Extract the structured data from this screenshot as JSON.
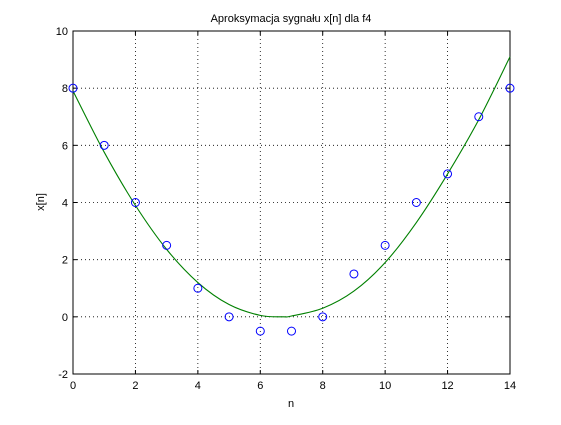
{
  "chart_data": {
    "type": "scatter",
    "title": "Aproksymacja sygnału x[n] dla f4",
    "xlabel": "n",
    "ylabel": "x[n]",
    "xlim": [
      0,
      14
    ],
    "ylim": [
      -2,
      10
    ],
    "xticks": [
      0,
      2,
      4,
      6,
      8,
      10,
      12,
      14
    ],
    "yticks": [
      -2,
      0,
      2,
      4,
      6,
      8,
      10
    ],
    "xtick_labels": [
      "0",
      "2",
      "4",
      "6",
      "8",
      "10",
      "12",
      "14"
    ],
    "ytick_labels": [
      "-2",
      "0",
      "2",
      "4",
      "6",
      "8",
      "10"
    ],
    "grid": true,
    "series": [
      {
        "kind": "markers",
        "marker": "circle",
        "color": "#0000ff",
        "x": [
          0,
          1,
          2,
          3,
          4,
          5,
          6,
          7,
          8,
          9,
          10,
          11,
          12,
          13,
          14
        ],
        "y": [
          8,
          6,
          4,
          2.5,
          1,
          0,
          -0.5,
          -0.5,
          0,
          1.5,
          2.5,
          4,
          5,
          7,
          8
        ]
      },
      {
        "kind": "line",
        "color": "#008000",
        "x": [
          0,
          1,
          2,
          3,
          4,
          5,
          6,
          6.75,
          7,
          8,
          9,
          10,
          11,
          12,
          13,
          14
        ],
        "y": [
          7.9,
          5.76,
          3.9,
          2.36,
          1.2,
          0.43,
          0.05,
          0,
          0.03,
          0.3,
          0.9,
          1.9,
          3.3,
          5.0,
          6.9,
          9.1
        ]
      }
    ]
  }
}
